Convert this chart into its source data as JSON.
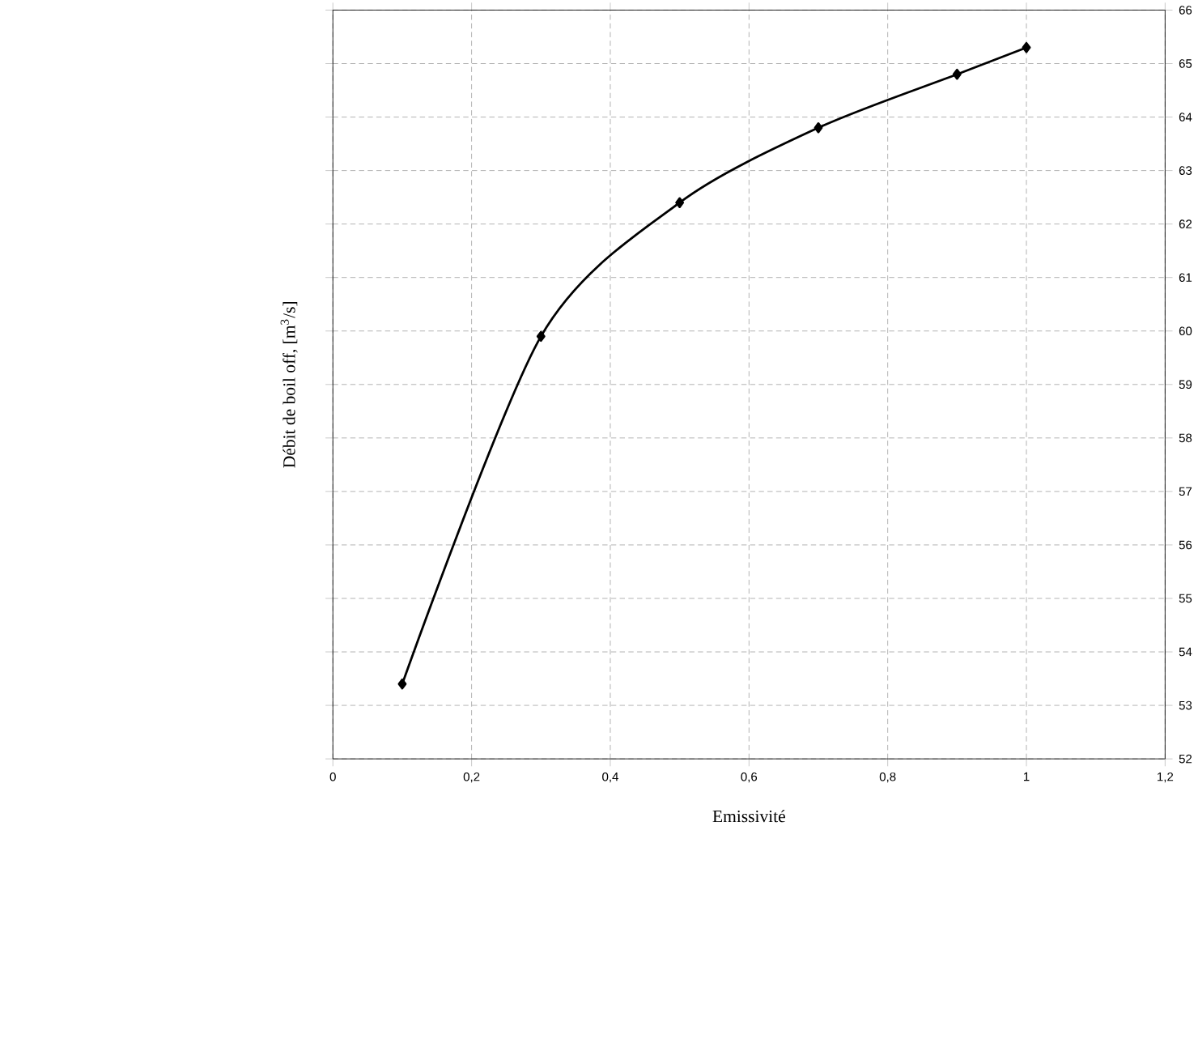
{
  "chart_data": {
    "type": "line",
    "xlabel": "Emissivité",
    "ylabel": "Débit de boil off, [m$^{3}$/s]",
    "x": [
      0.1,
      0.3,
      0.5,
      0.7,
      0.9,
      1.0
    ],
    "values": [
      53.4,
      59.9,
      62.4,
      63.8,
      64.8,
      65.3
    ],
    "color": "#000000",
    "marker": "diamond",
    "grid": true,
    "xlim": [
      0,
      1.2
    ],
    "ylim": [
      52,
      66
    ],
    "xticks": [
      0,
      {
        "value": 0.2,
        "label": "0,2"
      },
      {
        "value": 0.4,
        "label": "0,4"
      },
      {
        "value": 0.6,
        "label": "0,6"
      },
      {
        "value": 0.8,
        "label": "0,8"
      },
      1,
      {
        "value": 1.2,
        "label": "1,2"
      }
    ],
    "yticks": [
      52,
      53,
      54,
      55,
      56,
      57,
      58,
      59,
      60,
      61,
      62,
      63,
      64,
      65,
      66
    ]
  }
}
